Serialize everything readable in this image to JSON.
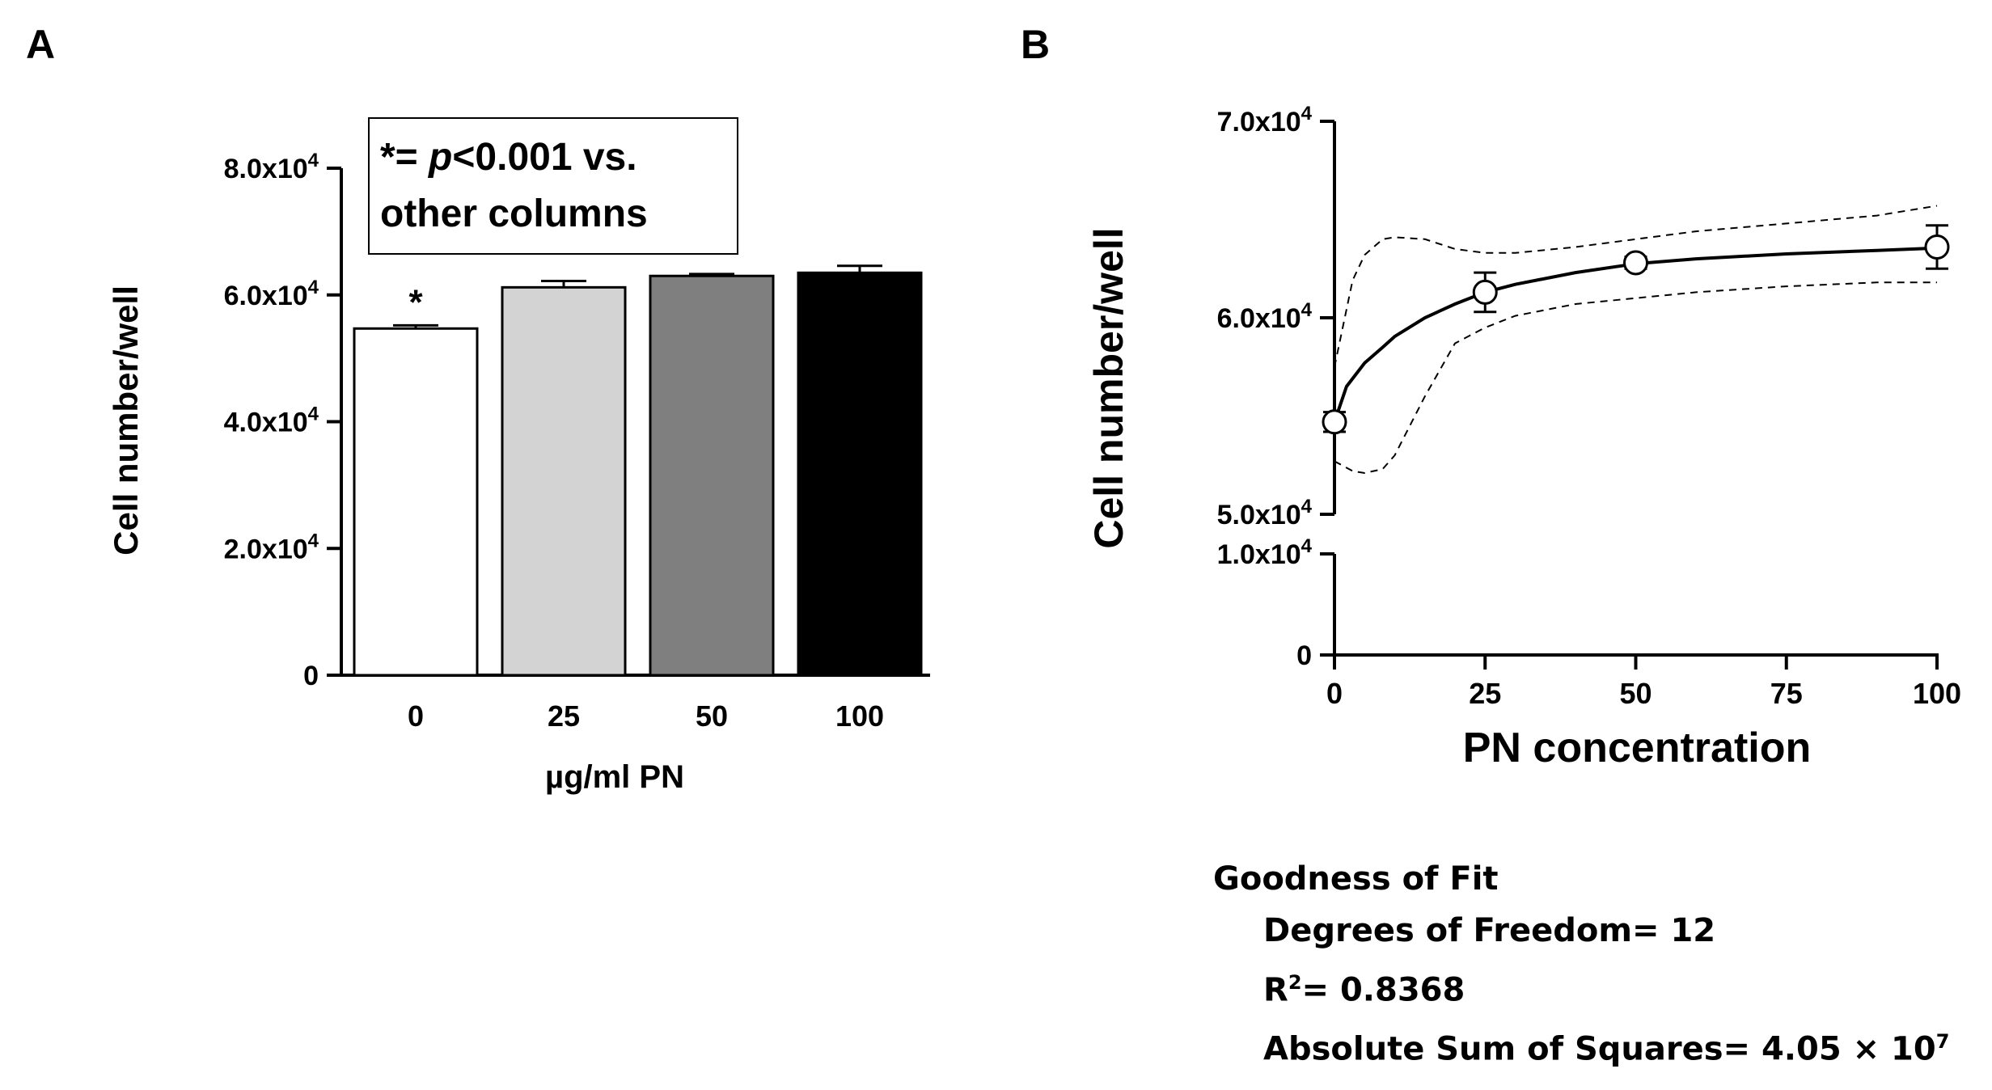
{
  "panels": {
    "a": {
      "label": "A"
    },
    "b": {
      "label": "B"
    }
  },
  "chart_data": [
    {
      "type": "bar",
      "panel": "A",
      "categories": [
        "0",
        "25",
        "50",
        "100"
      ],
      "values": [
        54700,
        61200,
        63000,
        63500
      ],
      "errors": [
        500,
        1000,
        300,
        1100
      ],
      "bar_colors": [
        "#ffffff",
        "#d3d3d3",
        "#7f7f7f",
        "#000000"
      ],
      "significance_marker": {
        "category": "0",
        "symbol": "*"
      },
      "annotation": {
        "prefix": "*=",
        "italic": "p",
        "suffix": "<0.001 vs.",
        "line2": "other columns"
      },
      "xlabel": "µg/ml PN",
      "ylabel": "Cell number/well",
      "ylim": [
        0,
        80000
      ],
      "yticks": [
        0,
        20000,
        40000,
        60000,
        80000
      ],
      "ytick_labels": [
        "0",
        "2.0x10",
        "4.0x10",
        "6.0x10",
        "8.0x10"
      ],
      "ytick_exponent": "4",
      "grid": false
    },
    {
      "type": "scatter",
      "panel": "B",
      "points": {
        "x": [
          0,
          25,
          50,
          100
        ],
        "y": [
          54700,
          61300,
          62800,
          63600
        ],
        "err": [
          500,
          1000,
          300,
          1100
        ]
      },
      "fit_curve": {
        "x": [
          0,
          2,
          5,
          8,
          10,
          15,
          20,
          25,
          30,
          40,
          50,
          60,
          75,
          90,
          100
        ],
        "y": [
          54700,
          56500,
          57700,
          58500,
          59050,
          60000,
          60700,
          61300,
          61700,
          62300,
          62750,
          63000,
          63250,
          63430,
          63550
        ]
      },
      "confidence_band_upper": {
        "x": [
          0,
          3,
          5,
          8,
          10,
          15,
          20,
          25,
          30,
          40,
          50,
          60,
          75,
          90,
          100
        ],
        "y": [
          57500,
          61900,
          63200,
          64000,
          64100,
          64000,
          63500,
          63300,
          63300,
          63600,
          64000,
          64400,
          64800,
          65200,
          65700
        ]
      },
      "confidence_band_lower": {
        "x": [
          0,
          3,
          5,
          8,
          10,
          15,
          20,
          25,
          30,
          40,
          50,
          60,
          75,
          90,
          100
        ],
        "y": [
          52700,
          52200,
          52100,
          52300,
          53000,
          56000,
          58700,
          59500,
          60100,
          60700,
          61000,
          61300,
          61600,
          61800,
          61800
        ]
      },
      "xlabel": "PN concentration",
      "ylabel": "Cell number/well",
      "xlim": [
        0,
        100
      ],
      "xticks": [
        0,
        25,
        50,
        75,
        100
      ],
      "xtick_labels": [
        "0",
        "25",
        "50",
        "75",
        "100"
      ],
      "y_axis_break": true,
      "ylim_lower_segment": [
        0,
        10000
      ],
      "ylim_upper_segment": [
        50000,
        70000
      ],
      "yticks_lower": [
        0,
        10000
      ],
      "ytick_labels_lower": [
        "0",
        "1.0x10"
      ],
      "yticks_upper": [
        50000,
        60000,
        70000
      ],
      "ytick_labels_upper": [
        "5.0x10",
        "6.0x10",
        "7.0x10"
      ],
      "ytick_exponent": "4",
      "grid": false
    }
  ],
  "goodness_of_fit": {
    "title": "Goodness of Fit",
    "dof": "Degrees of Freedom= 12",
    "r2_prefix": "R",
    "r2_sup": "2",
    "r2_suffix": "= 0.8368",
    "ss_prefix": "Absolute Sum of Squares= 4.05 × 10",
    "ss_sup": "7"
  }
}
